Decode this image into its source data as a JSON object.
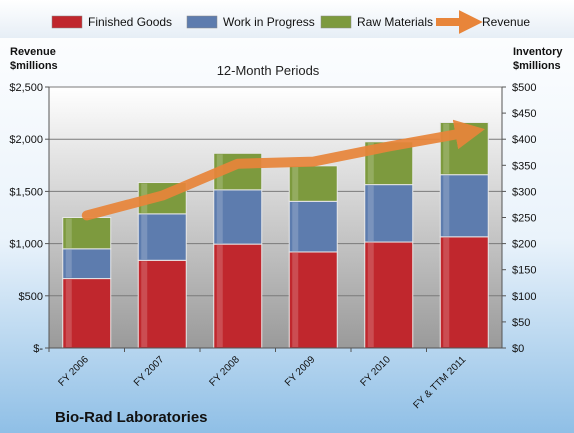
{
  "chart_data": {
    "type": "bar",
    "subtitle": "12-Month Periods",
    "company": "Bio-Rad Laboratories",
    "left_axis_label": [
      "Revenue",
      "$millions"
    ],
    "right_axis_label": [
      "Inventory",
      "$millions"
    ],
    "categories": [
      "FY 2006",
      "FY 2007",
      "FY 2008",
      "FY 2009",
      "FY 2010",
      "FY & TTM 2011"
    ],
    "left_ylim": [
      0,
      2500
    ],
    "right_ylim": [
      0,
      500
    ],
    "left_ticks": [
      "$-",
      "$500",
      "$1,000",
      "$1,500",
      "$2,000",
      "$2,500"
    ],
    "right_ticks": [
      "$0",
      "$50",
      "$100",
      "$150",
      "$200",
      "$250",
      "$300",
      "$350",
      "$400",
      "$450",
      "$500"
    ],
    "stacked_axis": "right",
    "line_axis": "left",
    "series": [
      {
        "name": "Finished Goods",
        "kind": "bar",
        "color": "#c0272d",
        "values": [
          133,
          168,
          199,
          184,
          203,
          213
        ]
      },
      {
        "name": "Work in Progress",
        "kind": "bar",
        "color": "#5d7cae",
        "values": [
          57,
          89,
          104,
          97,
          110,
          119
        ]
      },
      {
        "name": "Raw Materials",
        "kind": "bar",
        "color": "#7d9a3e",
        "values": [
          60,
          60,
          70,
          68,
          82,
          100
        ]
      },
      {
        "name": "Revenue",
        "kind": "line",
        "color": "#e8853a",
        "values": [
          1270,
          1460,
          1765,
          1785,
          1930,
          2060
        ]
      }
    ],
    "grid": true,
    "legend": "top"
  }
}
